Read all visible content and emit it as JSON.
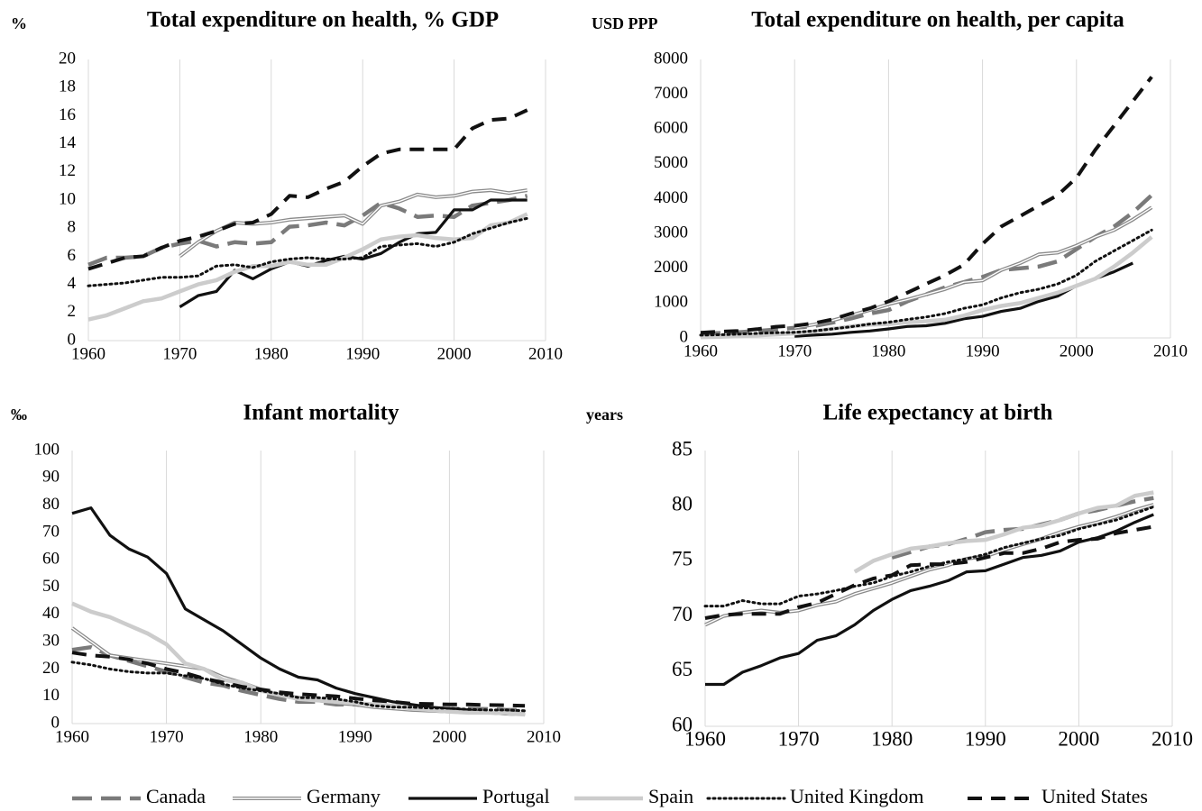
{
  "chart_data": [
    {
      "type": "line",
      "title": "Total expenditure on health, % GDP",
      "unit": "%",
      "x": [
        1960,
        1962,
        1964,
        1966,
        1968,
        1970,
        1972,
        1974,
        1976,
        1978,
        1980,
        1982,
        1984,
        1986,
        1988,
        1990,
        1992,
        1994,
        1996,
        1998,
        2000,
        2002,
        2004,
        2006,
        2008
      ],
      "xlim": [
        1960,
        2010
      ],
      "xticks": [
        1960,
        1970,
        1980,
        1990,
        2000,
        2010
      ],
      "ylim": [
        0,
        20
      ],
      "yticks": [
        0,
        2,
        4,
        6,
        8,
        10,
        12,
        14,
        16,
        18,
        20
      ],
      "grid": "x",
      "series": [
        {
          "name": "Canada",
          "color": "#7a7a7a",
          "style": "dash",
          "values": [
            5.4,
            5.9,
            5.9,
            6.0,
            6.6,
            6.9,
            7.1,
            6.7,
            7.0,
            6.9,
            7.0,
            8.1,
            8.2,
            8.4,
            8.2,
            8.9,
            9.8,
            9.4,
            8.8,
            8.9,
            8.8,
            9.6,
            9.8,
            10.0,
            10.3
          ]
        },
        {
          "name": "Germany",
          "color": "#8a8a8a",
          "style": "double",
          "values": [
            null,
            null,
            null,
            null,
            null,
            6.0,
            7.0,
            7.8,
            8.4,
            8.3,
            8.4,
            8.6,
            8.7,
            8.8,
            8.9,
            8.3,
            9.6,
            9.9,
            10.4,
            10.2,
            10.3,
            10.6,
            10.7,
            10.5,
            10.7
          ]
        },
        {
          "name": "Portugal",
          "color": "#111111",
          "style": "solid",
          "values": [
            null,
            null,
            null,
            null,
            null,
            2.4,
            3.2,
            3.5,
            5.0,
            4.4,
            5.1,
            5.6,
            5.3,
            5.7,
            6.0,
            5.8,
            6.2,
            7.0,
            7.6,
            7.7,
            9.3,
            9.3,
            10.0,
            10.0,
            10.0
          ]
        },
        {
          "name": "Spain",
          "color": "#cccccc",
          "style": "solid",
          "values": [
            1.5,
            1.8,
            2.3,
            2.8,
            3.0,
            3.5,
            4.0,
            4.3,
            4.9,
            5.3,
            5.3,
            5.6,
            5.4,
            5.4,
            5.9,
            6.5,
            7.2,
            7.4,
            7.5,
            7.3,
            7.2,
            7.3,
            8.2,
            8.4,
            9.0
          ]
        },
        {
          "name": "United Kingdom",
          "color": "#111111",
          "style": "dot",
          "values": [
            3.9,
            4.0,
            4.1,
            4.3,
            4.5,
            4.5,
            4.6,
            5.3,
            5.4,
            5.2,
            5.6,
            5.8,
            5.9,
            5.8,
            5.8,
            5.9,
            6.7,
            6.8,
            6.9,
            6.7,
            7.0,
            7.6,
            8.0,
            8.4,
            8.7
          ]
        },
        {
          "name": "United States",
          "color": "#111111",
          "style": "bigdash",
          "values": [
            5.1,
            5.5,
            5.9,
            6.0,
            6.6,
            7.1,
            7.4,
            7.8,
            8.3,
            8.4,
            9.0,
            10.3,
            10.2,
            10.8,
            11.3,
            12.4,
            13.3,
            13.6,
            13.6,
            13.6,
            13.6,
            15.1,
            15.7,
            15.8,
            16.4
          ]
        }
      ]
    },
    {
      "type": "line",
      "title": "Total expenditure on health, per capita",
      "unit": "USD PPP",
      "x": [
        1960,
        1962,
        1964,
        1966,
        1968,
        1970,
        1972,
        1974,
        1976,
        1978,
        1980,
        1982,
        1984,
        1986,
        1988,
        1990,
        1992,
        1994,
        1996,
        1998,
        2000,
        2002,
        2004,
        2006,
        2008
      ],
      "xlim": [
        1960,
        2010
      ],
      "xticks": [
        1960,
        1970,
        1980,
        1990,
        2000,
        2010
      ],
      "ylim": [
        0,
        8000
      ],
      "yticks": [
        0,
        1000,
        2000,
        3000,
        4000,
        5000,
        6000,
        7000,
        8000
      ],
      "grid": "x",
      "series": [
        {
          "name": "Canada",
          "color": "#7a7a7a",
          "style": "dash",
          "values": [
            120,
            140,
            160,
            200,
            240,
            290,
            340,
            440,
            560,
            700,
            800,
            1050,
            1250,
            1450,
            1600,
            1750,
            1950,
            2000,
            2050,
            2200,
            2550,
            2900,
            3200,
            3600,
            4100
          ]
        },
        {
          "name": "Germany",
          "color": "#8a8a8a",
          "style": "double",
          "values": [
            null,
            null,
            null,
            null,
            null,
            290,
            380,
            500,
            650,
            800,
            970,
            1100,
            1250,
            1400,
            1600,
            1650,
            1950,
            2150,
            2400,
            2450,
            2650,
            2900,
            3100,
            3400,
            3750
          ]
        },
        {
          "name": "Portugal",
          "color": "#111111",
          "style": "solid",
          "values": [
            null,
            null,
            null,
            null,
            null,
            50,
            80,
            110,
            160,
            200,
            260,
            330,
            350,
            420,
            550,
            620,
            760,
            850,
            1050,
            1200,
            1500,
            1700,
            1900,
            2150,
            null
          ]
        },
        {
          "name": "Spain",
          "color": "#cccccc",
          "style": "solid",
          "values": [
            20,
            30,
            50,
            70,
            100,
            130,
            180,
            260,
            330,
            380,
            400,
            450,
            480,
            520,
            640,
            800,
            920,
            1000,
            1150,
            1300,
            1500,
            1700,
            2050,
            2450,
            2900
          ]
        },
        {
          "name": "United Kingdom",
          "color": "#111111",
          "style": "dot",
          "values": [
            80,
            90,
            110,
            130,
            150,
            160,
            200,
            260,
            320,
            400,
            450,
            530,
            600,
            700,
            850,
            950,
            1150,
            1300,
            1400,
            1550,
            1800,
            2200,
            2500,
            2800,
            3100
          ]
        },
        {
          "name": "United States",
          "color": "#111111",
          "style": "bigdash",
          "values": [
            150,
            180,
            200,
            250,
            320,
            350,
            420,
            530,
            700,
            850,
            1050,
            1300,
            1550,
            1800,
            2100,
            2700,
            3200,
            3500,
            3800,
            4100,
            4600,
            5400,
            6100,
            6800,
            7500
          ]
        }
      ]
    },
    {
      "type": "line",
      "title": "Infant mortality",
      "unit": "‰",
      "x": [
        1960,
        1962,
        1964,
        1966,
        1968,
        1970,
        1972,
        1974,
        1976,
        1978,
        1980,
        1982,
        1984,
        1986,
        1988,
        1990,
        1992,
        1994,
        1996,
        1998,
        2000,
        2002,
        2004,
        2006,
        2008
      ],
      "xlim": [
        1960,
        2010
      ],
      "xticks": [
        1960,
        1970,
        1980,
        1990,
        2000,
        2010
      ],
      "ylim": [
        0,
        100
      ],
      "yticks": [
        0,
        10,
        20,
        30,
        40,
        50,
        60,
        70,
        80,
        90,
        100
      ],
      "grid": "x",
      "series": [
        {
          "name": "Canada",
          "color": "#7a7a7a",
          "style": "dash",
          "values": [
            27,
            28,
            25,
            23,
            21,
            19,
            17,
            15,
            14,
            12,
            10.5,
            9,
            8,
            8,
            7,
            7,
            6.5,
            6,
            5.5,
            5.3,
            5.3,
            5.4,
            5.3,
            5,
            5
          ]
        },
        {
          "name": "Germany",
          "color": "#8a8a8a",
          "style": "double",
          "values": [
            35,
            30,
            25,
            24,
            23,
            22,
            21,
            20,
            17,
            15,
            12.5,
            10.5,
            9.5,
            8.5,
            7.5,
            7,
            6,
            5.5,
            5,
            4.7,
            4.4,
            4.2,
            4,
            3.8,
            3.5
          ]
        },
        {
          "name": "Portugal",
          "color": "#111111",
          "style": "solid",
          "values": [
            77,
            79,
            69,
            64,
            61,
            55,
            42,
            38,
            34,
            29,
            24,
            20,
            17,
            16,
            13,
            11,
            9.5,
            8,
            7,
            6,
            5.5,
            5,
            4,
            3.5,
            3.3
          ]
        },
        {
          "name": "Spain",
          "color": "#cccccc",
          "style": "solid",
          "values": [
            44,
            41,
            39,
            36,
            33,
            29,
            22,
            20,
            16,
            15,
            12,
            10.5,
            9,
            8.5,
            8,
            7.5,
            7,
            6.5,
            5.5,
            5,
            4.4,
            4,
            4,
            3.8,
            3.3
          ]
        },
        {
          "name": "United Kingdom",
          "color": "#111111",
          "style": "dot",
          "values": [
            22.5,
            21.5,
            20,
            19,
            18.5,
            18.5,
            17.5,
            16.5,
            14.5,
            13,
            12,
            11,
            9.5,
            9.5,
            9,
            8,
            6.5,
            6,
            6,
            5.7,
            5.6,
            5.2,
            5,
            5,
            4.7
          ]
        },
        {
          "name": "United States",
          "color": "#111111",
          "style": "bigdash",
          "values": [
            26,
            25,
            24.5,
            23.5,
            22,
            20,
            18.5,
            16.5,
            15,
            13.5,
            12.5,
            11.5,
            10.8,
            10.4,
            10,
            9.2,
            8.5,
            8,
            7.3,
            7.2,
            7,
            7,
            6.8,
            6.7,
            6.5
          ]
        }
      ]
    },
    {
      "type": "line",
      "title": "Life expectancy at birth",
      "unit": "years",
      "x": [
        1960,
        1962,
        1964,
        1966,
        1968,
        1970,
        1972,
        1974,
        1976,
        1978,
        1980,
        1982,
        1984,
        1986,
        1988,
        1990,
        1992,
        1994,
        1996,
        1998,
        2000,
        2002,
        2004,
        2006,
        2008
      ],
      "xlim": [
        1960,
        2010
      ],
      "xticks": [
        1960,
        1970,
        1980,
        1990,
        2000,
        2010
      ],
      "ylim": [
        60,
        85
      ],
      "yticks": [
        60,
        65,
        70,
        75,
        80,
        85
      ],
      "grid": "x",
      "series": [
        {
          "name": "Canada",
          "color": "#7a7a7a",
          "style": "dash",
          "values": [
            null,
            null,
            null,
            null,
            null,
            null,
            null,
            null,
            null,
            null,
            75.3,
            75.8,
            76.3,
            76.5,
            77,
            77.6,
            77.8,
            77.9,
            78.3,
            78.7,
            79.3,
            79.6,
            80,
            80.4,
            80.7
          ]
        },
        {
          "name": "Germany",
          "color": "#8a8a8a",
          "style": "double",
          "values": [
            69.2,
            70,
            70.3,
            70.5,
            70.3,
            70.5,
            71,
            71.3,
            72,
            72.5,
            73,
            73.6,
            74.2,
            74.6,
            75.2,
            75.4,
            76,
            76.5,
            77,
            77.6,
            78.1,
            78.5,
            79,
            79.6,
            80.1
          ]
        },
        {
          "name": "Portugal",
          "color": "#111111",
          "style": "solid",
          "values": [
            63.8,
            63.8,
            64.9,
            65.5,
            66.2,
            66.6,
            67.8,
            68.2,
            69.2,
            70.5,
            71.5,
            72.3,
            72.7,
            73.2,
            74,
            74.1,
            74.7,
            75.3,
            75.5,
            75.9,
            76.7,
            77.1,
            77.7,
            78.5,
            79.2
          ]
        },
        {
          "name": "Spain",
          "color": "#cccccc",
          "style": "solid",
          "values": [
            null,
            null,
            null,
            null,
            null,
            null,
            null,
            null,
            74,
            75,
            75.6,
            76.1,
            76.3,
            76.6,
            76.8,
            76.9,
            77.4,
            78,
            78.2,
            78.7,
            79.3,
            79.8,
            80,
            80.9,
            81.2
          ]
        },
        {
          "name": "United Kingdom",
          "color": "#111111",
          "style": "dot",
          "values": [
            70.9,
            70.9,
            71.4,
            71.1,
            71.1,
            71.8,
            72,
            72.3,
            72.7,
            73,
            73.6,
            74,
            74.5,
            74.9,
            75.2,
            75.6,
            76.2,
            76.6,
            77,
            77.3,
            77.9,
            78.3,
            78.7,
            79.3,
            79.9
          ]
        },
        {
          "name": "United States",
          "color": "#111111",
          "style": "bigdash",
          "values": [
            69.8,
            70.1,
            70.2,
            70.2,
            70.2,
            70.8,
            71.2,
            72,
            72.8,
            73.4,
            73.7,
            74.6,
            74.7,
            74.7,
            74.9,
            75.3,
            75.7,
            75.7,
            76.1,
            76.7,
            76.9,
            77,
            77.5,
            77.8,
            78.1
          ]
        }
      ]
    }
  ]
}
